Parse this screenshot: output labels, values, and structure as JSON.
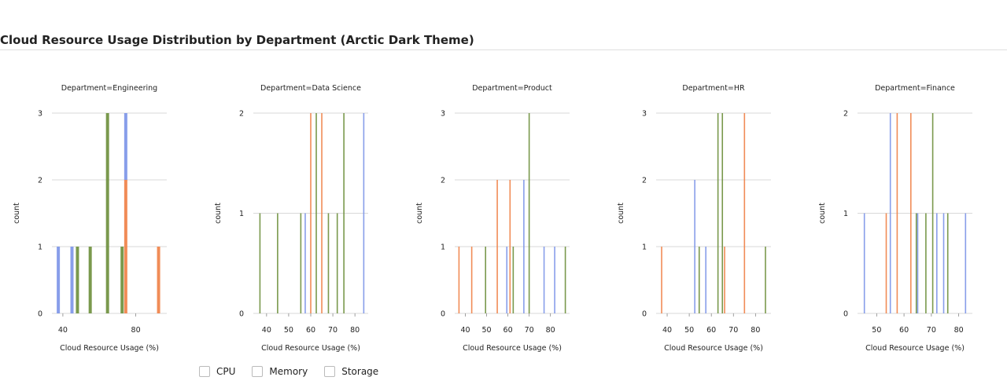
{
  "title": "Cloud Resource Usage Distribution by Department (Arctic Dark Theme)",
  "colors": {
    "CPU": "#7b93e8",
    "Memory": "#ef7f45",
    "Storage": "#6b8e3a",
    "grid": "#cccccc",
    "axis": "#222222"
  },
  "legend": [
    {
      "label": "CPU",
      "color": "#7b93e8"
    },
    {
      "label": "Memory",
      "color": "#ef7f45"
    },
    {
      "label": "Storage",
      "color": "#6b8e3a"
    }
  ],
  "chart_data": [
    {
      "type": "bar",
      "title": "Department=Engineering",
      "xlabel": "Cloud Resource Usage (%)",
      "ylabel": "count",
      "xlim": [
        34,
        97
      ],
      "ylim": [
        0,
        3
      ],
      "yticks": [
        0,
        1,
        2,
        3
      ],
      "xticks": [
        40,
        80
      ],
      "bars": [
        {
          "series": "CPU",
          "x": 37.5,
          "y0": 0,
          "y1": 1
        },
        {
          "series": "CPU",
          "x": 45,
          "y0": 0,
          "y1": 1
        },
        {
          "series": "Storage",
          "x": 48,
          "y0": 0,
          "y1": 1
        },
        {
          "series": "Storage",
          "x": 55,
          "y0": 0,
          "y1": 1
        },
        {
          "series": "Storage",
          "x": 64.5,
          "y0": 0,
          "y1": 3
        },
        {
          "series": "Storage",
          "x": 72.5,
          "y0": 0,
          "y1": 1
        },
        {
          "series": "CPU",
          "x": 74.5,
          "y0": 2,
          "y1": 3
        },
        {
          "series": "Memory",
          "x": 74.5,
          "y0": 0,
          "y1": 2
        },
        {
          "series": "Memory",
          "x": 92.5,
          "y0": 0,
          "y1": 1
        }
      ]
    },
    {
      "type": "bar",
      "title": "Department=Data Science",
      "xlabel": "Cloud Resource Usage (%)",
      "ylabel": "count",
      "xlim": [
        34,
        86
      ],
      "ylim": [
        0,
        2
      ],
      "yticks": [
        0,
        1,
        2
      ],
      "xticks": [
        40,
        50,
        60,
        70,
        80
      ],
      "bars": [
        {
          "series": "Storage",
          "x": 37,
          "y0": 0,
          "y1": 1
        },
        {
          "series": "Storage",
          "x": 45,
          "y0": 0,
          "y1": 1
        },
        {
          "series": "Storage",
          "x": 55.5,
          "y0": 0,
          "y1": 1
        },
        {
          "series": "CPU",
          "x": 57.5,
          "y0": 0,
          "y1": 1
        },
        {
          "series": "Memory",
          "x": 60,
          "y0": 0,
          "y1": 2
        },
        {
          "series": "Storage",
          "x": 62.5,
          "y0": 0,
          "y1": 2
        },
        {
          "series": "Memory",
          "x": 65,
          "y0": 0,
          "y1": 2
        },
        {
          "series": "Storage",
          "x": 68,
          "y0": 0,
          "y1": 1
        },
        {
          "series": "Storage",
          "x": 72,
          "y0": 0,
          "y1": 1
        },
        {
          "series": "Storage",
          "x": 75,
          "y0": 0,
          "y1": 2
        },
        {
          "series": "CPU",
          "x": 84,
          "y0": 0,
          "y1": 2
        }
      ]
    },
    {
      "type": "bar",
      "title": "Department=Product",
      "xlabel": "Cloud Resource Usage (%)",
      "ylabel": "count",
      "xlim": [
        35,
        89
      ],
      "ylim": [
        0,
        3
      ],
      "yticks": [
        0,
        1,
        2,
        3
      ],
      "xticks": [
        40,
        50,
        60,
        70,
        80
      ],
      "bars": [
        {
          "series": "Memory",
          "x": 37,
          "y0": 0,
          "y1": 1
        },
        {
          "series": "Memory",
          "x": 43,
          "y0": 0,
          "y1": 1
        },
        {
          "series": "Storage",
          "x": 49.5,
          "y0": 0,
          "y1": 1
        },
        {
          "series": "Memory",
          "x": 55,
          "y0": 0,
          "y1": 2
        },
        {
          "series": "CPU",
          "x": 59.5,
          "y0": 0,
          "y1": 1
        },
        {
          "series": "Memory",
          "x": 61,
          "y0": 0,
          "y1": 2
        },
        {
          "series": "Storage",
          "x": 62.5,
          "y0": 0,
          "y1": 1
        },
        {
          "series": "CPU",
          "x": 67.5,
          "y0": 0,
          "y1": 2
        },
        {
          "series": "Storage",
          "x": 70,
          "y0": 0,
          "y1": 3
        },
        {
          "series": "CPU",
          "x": 77,
          "y0": 0,
          "y1": 1
        },
        {
          "series": "CPU",
          "x": 82,
          "y0": 0,
          "y1": 1
        },
        {
          "series": "Storage",
          "x": 87,
          "y0": 0,
          "y1": 1
        }
      ]
    },
    {
      "type": "bar",
      "title": "Department=HR",
      "xlabel": "Cloud Resource Usage (%)",
      "ylabel": "count",
      "xlim": [
        35,
        87
      ],
      "ylim": [
        0,
        3
      ],
      "yticks": [
        0,
        1,
        2,
        3
      ],
      "xticks": [
        40,
        50,
        60,
        70,
        80
      ],
      "bars": [
        {
          "series": "Memory",
          "x": 37.5,
          "y0": 0,
          "y1": 1
        },
        {
          "series": "CPU",
          "x": 52.5,
          "y0": 0,
          "y1": 2
        },
        {
          "series": "Storage",
          "x": 54.5,
          "y0": 0,
          "y1": 1
        },
        {
          "series": "CPU",
          "x": 57.5,
          "y0": 0,
          "y1": 1
        },
        {
          "series": "Storage",
          "x": 63,
          "y0": 0,
          "y1": 3
        },
        {
          "series": "Storage",
          "x": 65,
          "y0": 0,
          "y1": 3
        },
        {
          "series": "Memory",
          "x": 66,
          "y0": 0,
          "y1": 1
        },
        {
          "series": "Memory",
          "x": 75,
          "y0": 0,
          "y1": 3
        },
        {
          "series": "Storage",
          "x": 84.5,
          "y0": 0,
          "y1": 1
        }
      ]
    },
    {
      "type": "bar",
      "title": "Department=Finance",
      "xlabel": "Cloud Resource Usage (%)",
      "ylabel": "count",
      "xlim": [
        43,
        85
      ],
      "ylim": [
        0,
        2
      ],
      "yticks": [
        0,
        1,
        2
      ],
      "xticks": [
        50,
        60,
        70,
        80
      ],
      "bars": [
        {
          "series": "CPU",
          "x": 45.5,
          "y0": 0,
          "y1": 1
        },
        {
          "series": "Memory",
          "x": 53.5,
          "y0": 0,
          "y1": 1
        },
        {
          "series": "CPU",
          "x": 55,
          "y0": 0,
          "y1": 2
        },
        {
          "series": "Memory",
          "x": 57.5,
          "y0": 0,
          "y1": 2
        },
        {
          "series": "Memory",
          "x": 62.5,
          "y0": 0,
          "y1": 2
        },
        {
          "series": "Storage",
          "x": 64.5,
          "y0": 0,
          "y1": 1
        },
        {
          "series": "CPU",
          "x": 65,
          "y0": 0,
          "y1": 1
        },
        {
          "series": "Storage",
          "x": 68,
          "y0": 0,
          "y1": 1
        },
        {
          "series": "Storage",
          "x": 70.5,
          "y0": 0,
          "y1": 2
        },
        {
          "series": "CPU",
          "x": 72,
          "y0": 0,
          "y1": 1
        },
        {
          "series": "CPU",
          "x": 74.5,
          "y0": 0,
          "y1": 1
        },
        {
          "series": "Storage",
          "x": 76,
          "y0": 0,
          "y1": 1
        },
        {
          "series": "CPU",
          "x": 82.5,
          "y0": 0,
          "y1": 1
        }
      ]
    }
  ]
}
